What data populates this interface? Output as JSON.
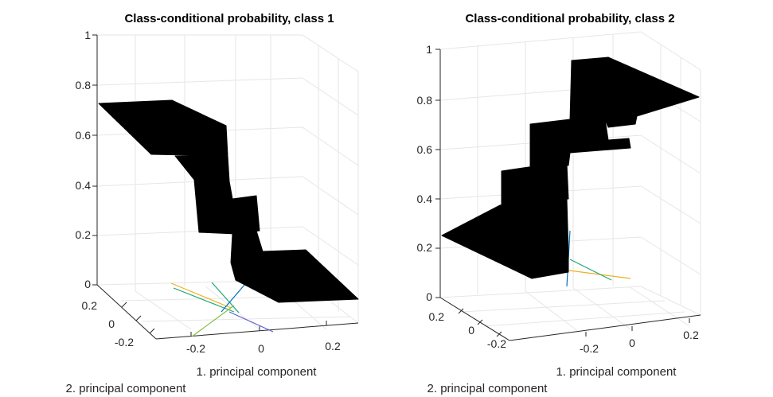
{
  "chart_data": [
    {
      "type": "surface",
      "title": "Class-conditional probability, class 1",
      "xlabel": "1. principal component",
      "ylabel": "2. principal component",
      "zlabel": "",
      "xlim": [
        -0.3,
        0.3
      ],
      "ylim": [
        -0.3,
        0.3
      ],
      "zlim": [
        0,
        1
      ],
      "x_ticks": [
        "-0.2",
        "0",
        "0.2"
      ],
      "y_ticks": [
        "-0.2",
        "0",
        "0.2"
      ],
      "z_ticks": [
        "0",
        "0.2",
        "0.4",
        "0.6",
        "0.8",
        "1"
      ],
      "grid": true,
      "surface_levels": [
        0.75,
        0.7,
        0.48,
        0.3,
        0.18,
        0.1
      ],
      "colors": {
        "surface": "#000000",
        "lines": [
          "#0072BD",
          "#1FA774",
          "#EDB120",
          "#5B5BD6",
          "#7FBF3F"
        ]
      }
    },
    {
      "type": "surface",
      "title": "Class-conditional probability, class 2",
      "xlabel": "1. principal component",
      "ylabel": "2. principal component",
      "zlabel": "",
      "xlim": [
        -0.3,
        0.3
      ],
      "ylim": [
        -0.3,
        0.3
      ],
      "zlim": [
        0,
        1
      ],
      "x_ticks": [
        "-0.2",
        "0",
        "0.2"
      ],
      "y_ticks": [
        "-0.2",
        "0",
        "0.2"
      ],
      "z_ticks": [
        "0",
        "0.2",
        "0.4",
        "0.6",
        "0.8",
        "1"
      ],
      "grid": true,
      "surface_levels": [
        0.25,
        0.3,
        0.52,
        0.7,
        0.8,
        0.92
      ],
      "colors": {
        "surface": "#000000",
        "lines": [
          "#0072BD",
          "#1FA774",
          "#EDB120"
        ]
      }
    }
  ]
}
